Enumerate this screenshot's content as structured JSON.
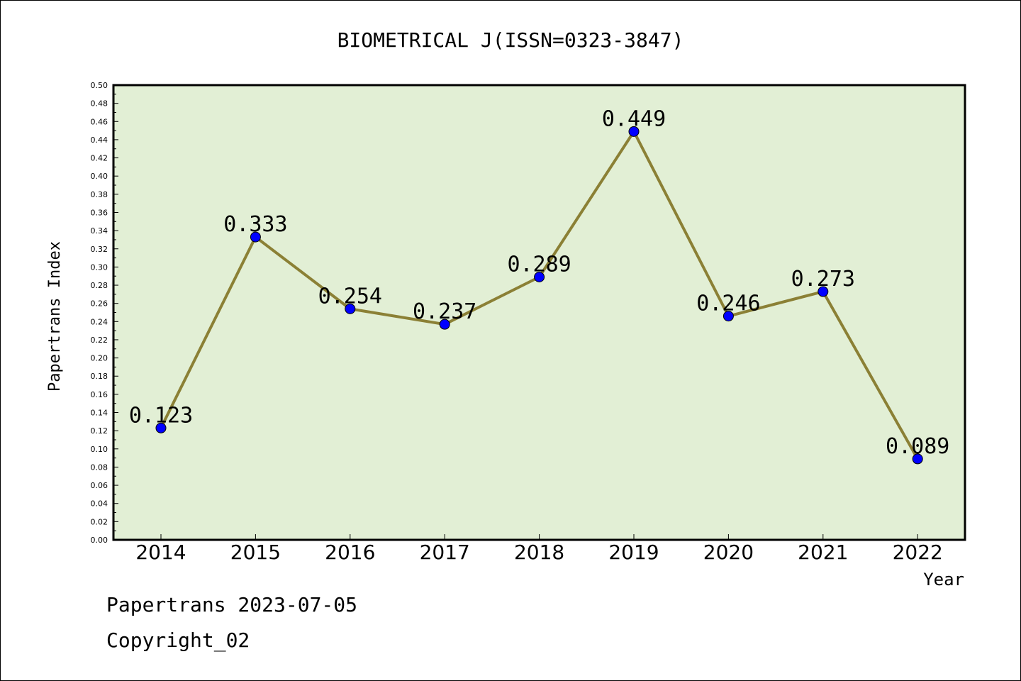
{
  "chart_data": {
    "type": "line",
    "title": "BIOMETRICAL J(ISSN=0323-3847)",
    "xlabel": "Year",
    "ylabel": "Papertrans Index",
    "categories": [
      "2014",
      "2015",
      "2016",
      "2017",
      "2018",
      "2019",
      "2020",
      "2021",
      "2022"
    ],
    "series": [
      {
        "values": [
          0.123,
          0.333,
          0.254,
          0.237,
          0.289,
          0.449,
          0.246,
          0.273,
          0.089
        ]
      }
    ],
    "data_labels": [
      "0.123",
      "0.333",
      "0.254",
      "0.237",
      "0.289",
      "0.449",
      "0.246",
      "0.273",
      "0.089"
    ],
    "ylim": [
      0,
      0.5
    ],
    "yticks": [
      "0.00",
      "0.02",
      "0.04",
      "0.06",
      "0.08",
      "0.10",
      "0.12",
      "0.14",
      "0.16",
      "0.18",
      "0.20",
      "0.22",
      "0.24",
      "0.26",
      "0.28",
      "0.30",
      "0.32",
      "0.34",
      "0.36",
      "0.38",
      "0.40",
      "0.42",
      "0.44",
      "0.46",
      "0.48",
      "0.50"
    ],
    "grid": false,
    "colors": {
      "plot_background": "#e2efd5",
      "line": "#8b8035",
      "marker": "#0000ff"
    }
  },
  "footer": {
    "line1": "Papertrans 2023-07-05",
    "line2": "Copyright_02"
  }
}
